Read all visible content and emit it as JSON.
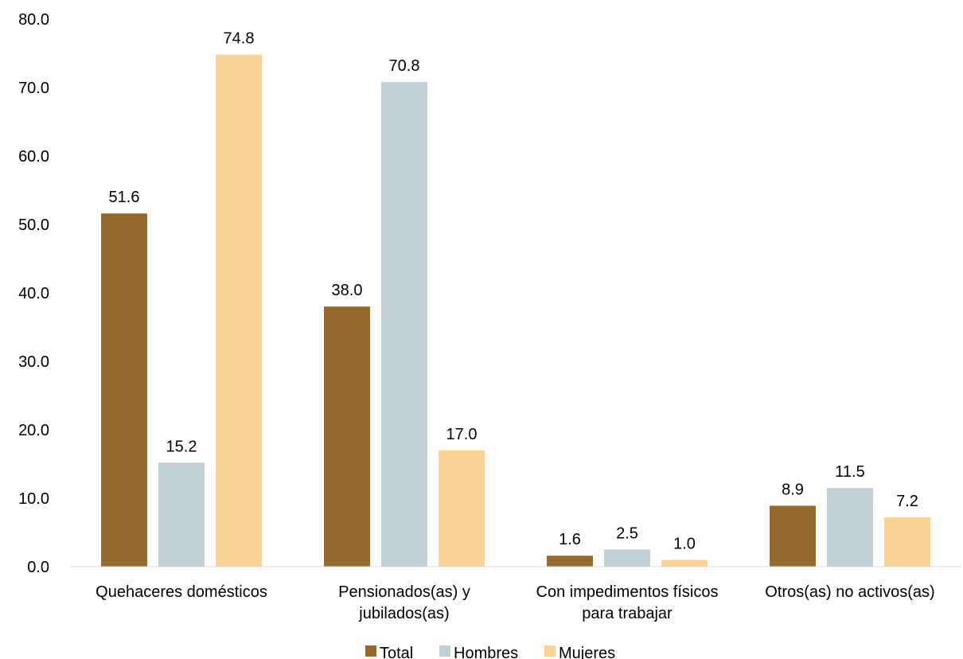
{
  "chart_data": {
    "type": "bar",
    "categories": [
      [
        "Quehaceres domésticos"
      ],
      [
        "Pensionados(as) y",
        "jubilados(as)"
      ],
      [
        "Con impedimentos físicos",
        "para trabajar"
      ],
      [
        "Otros(as) no activos(as)"
      ]
    ],
    "series": [
      {
        "name": "Total",
        "color": "#96692d",
        "values": [
          51.6,
          38.0,
          1.6,
          8.9
        ]
      },
      {
        "name": "Hombres",
        "color": "#bfd0d6",
        "values": [
          15.2,
          70.8,
          2.5,
          11.5
        ]
      },
      {
        "name": "Mujeres",
        "color": "#f9d396",
        "values": [
          74.8,
          17.0,
          1.0,
          7.2
        ]
      }
    ],
    "ylim": [
      0,
      80
    ],
    "yticks": [
      0,
      10,
      20,
      30,
      40,
      50,
      60,
      70,
      80
    ],
    "tick_decimals": 1,
    "grid": false,
    "legend_position": "bottom",
    "title": "",
    "xlabel": "",
    "ylabel": ""
  }
}
